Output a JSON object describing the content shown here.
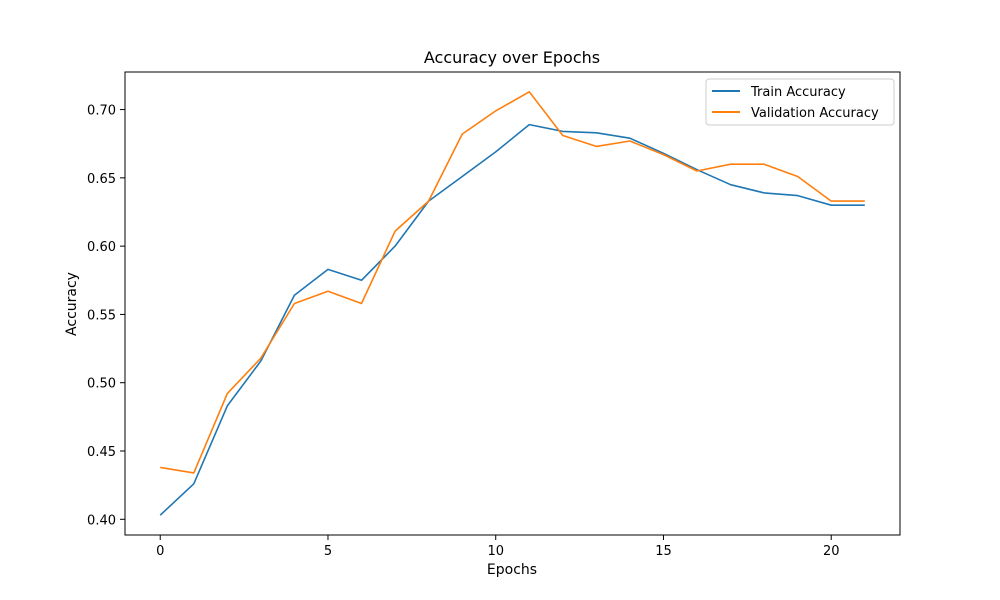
{
  "chart_data": {
    "type": "line",
    "title": "Accuracy over Epochs",
    "xlabel": "Epochs",
    "ylabel": "Accuracy",
    "xlim": [
      -1.05,
      22.05
    ],
    "ylim": [
      0.3885,
      0.7275
    ],
    "xticks": [
      0,
      5,
      10,
      15,
      20
    ],
    "yticks": [
      0.4,
      0.45,
      0.5,
      0.55,
      0.6,
      0.65,
      0.7
    ],
    "ytick_labels": [
      "0.40",
      "0.45",
      "0.50",
      "0.55",
      "0.60",
      "0.65",
      "0.70"
    ],
    "xtick_labels": [
      "0",
      "5",
      "10",
      "15",
      "20"
    ],
    "grid": false,
    "legend_position": "top-right",
    "x": [
      0,
      1,
      2,
      3,
      4,
      5,
      6,
      7,
      8,
      9,
      10,
      11,
      12,
      13,
      14,
      15,
      16,
      17,
      18,
      19,
      20,
      21
    ],
    "series": [
      {
        "name": "Train Accuracy",
        "color": "#1f77b4",
        "values": [
          0.403,
          0.426,
          0.483,
          0.516,
          0.564,
          0.583,
          0.575,
          0.6,
          0.633,
          0.651,
          0.669,
          0.689,
          0.684,
          0.683,
          0.679,
          0.668,
          0.656,
          0.645,
          0.639,
          0.637,
          0.63,
          0.63
        ]
      },
      {
        "name": "Validation Accuracy",
        "color": "#ff7f0e",
        "values": [
          0.438,
          0.434,
          0.492,
          0.518,
          0.558,
          0.567,
          0.558,
          0.611,
          0.633,
          0.682,
          0.699,
          0.713,
          0.681,
          0.673,
          0.677,
          0.667,
          0.655,
          0.66,
          0.66,
          0.651,
          0.633,
          0.633
        ]
      }
    ]
  }
}
